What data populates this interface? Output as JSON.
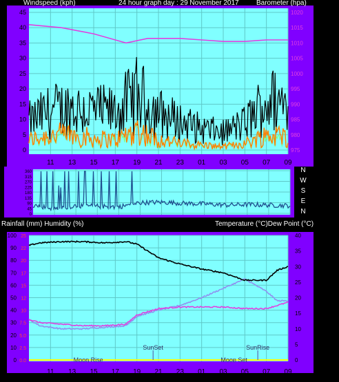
{
  "colors": {
    "background": "#000000",
    "frame": "#8000FF",
    "plot": "#80FFFF",
    "grid": "#5FC8C8",
    "pressure": "#E040E0",
    "gust": "#000000",
    "wind_avg": "#FF8000",
    "wind_light": "#80FF80",
    "direction": "#1F4F8F",
    "temperature": "#000000",
    "dewpoint": "#E040E0",
    "humidity": "#9090F0",
    "rain_axis": "#FF4040",
    "axis_text": "#000000",
    "header_text": "#FFFFFF",
    "rain_line": "#FFFF00"
  },
  "header": {
    "left": "Windspeed (kph)",
    "center": "24 hour graph day : 29 November 2017",
    "right": "Barometer (hpa)"
  },
  "middle_header": {
    "left": "Rainfall (mm)  Humidity (%)",
    "right": "Temperature (°C)Dew Point (°C)"
  },
  "x_ticks": [
    "11",
    "13",
    "15",
    "17",
    "19",
    "21",
    "23",
    "01",
    "03",
    "05",
    "07",
    "09"
  ],
  "chart_data": [
    {
      "type": "line",
      "name": "wind_pressure",
      "left_axis": {
        "ticks": [
          "0",
          "5",
          "10",
          "15",
          "20",
          "25",
          "30",
          "35",
          "40",
          "45"
        ],
        "range": [
          0,
          45
        ]
      },
      "right_axis": {
        "ticks": [
          "975",
          "980",
          "985",
          "990",
          "995",
          "1000",
          "1005",
          "1010",
          "1015",
          "1020"
        ],
        "range": [
          975,
          1020
        ]
      },
      "series": [
        {
          "key": "pressure",
          "x": [
            9,
            12,
            15,
            17,
            18,
            20,
            23,
            1,
            3,
            5,
            7,
            9
          ],
          "values": [
            1016,
            1015,
            1013,
            1011,
            1010,
            1011.5,
            1011.5,
            1011,
            1010.5,
            1010.5,
            1011,
            1011
          ]
        },
        {
          "key": "gust_envelope",
          "x": [
            9,
            11,
            13,
            15,
            17,
            19,
            21,
            23,
            1,
            3,
            5,
            7,
            9
          ],
          "values": [
            16,
            22,
            24,
            22,
            21,
            31,
            21,
            16,
            12,
            10,
            15,
            28,
            26
          ]
        },
        {
          "key": "avg_envelope",
          "x": [
            9,
            11,
            13,
            15,
            17,
            19,
            21,
            23,
            1,
            3,
            5,
            7,
            9
          ],
          "values": [
            6,
            9,
            9,
            7,
            6,
            12,
            6,
            4,
            3,
            2,
            4,
            9,
            8
          ]
        }
      ]
    },
    {
      "type": "line",
      "name": "wind_direction",
      "right_labels": [
        "N",
        "W",
        "S",
        "E",
        "N"
      ],
      "series": [
        {
          "key": "direction",
          "x": [
            9,
            11,
            13,
            15,
            17,
            19,
            21,
            23,
            1,
            3,
            5,
            7,
            9
          ],
          "values": [
            70,
            40,
            65,
            60,
            55,
            90,
            95,
            85,
            80,
            70,
            75,
            70,
            65
          ],
          "unit": "deg"
        }
      ]
    },
    {
      "type": "line",
      "name": "temp_humidity",
      "left_axis": {
        "ticks": [
          "0",
          "10",
          "20",
          "30",
          "40",
          "50",
          "60",
          "70",
          "80",
          "90",
          "100"
        ],
        "range": [
          0,
          100
        ]
      },
      "rain_axis": {
        "ticks": [
          "0.0",
          "2.5",
          "5.0",
          "7.5",
          "10",
          "12",
          "15",
          "17",
          "20",
          "22",
          "25"
        ]
      },
      "right_axis": {
        "ticks": [
          "0",
          "5",
          "10",
          "15",
          "20",
          "25",
          "30",
          "35",
          "40"
        ],
        "range": [
          0,
          40
        ]
      },
      "series": [
        {
          "key": "humidity",
          "x": [
            9,
            10,
            12,
            14,
            16,
            18,
            19,
            21,
            23,
            1,
            3,
            5,
            7,
            8,
            9
          ],
          "values": [
            92,
            94,
            95,
            95,
            94,
            95,
            93,
            82,
            77,
            73,
            70,
            64,
            64,
            72,
            75
          ]
        },
        {
          "key": "temperature",
          "x": [
            9,
            10,
            12,
            14,
            16,
            18,
            19,
            21,
            23,
            1,
            3,
            5,
            7,
            8,
            9
          ],
          "values": [
            13,
            12,
            11.5,
            11,
            11,
            11.5,
            14.5,
            16.5,
            17,
            17,
            17,
            16.5,
            16.5,
            17.5,
            18.5
          ]
        },
        {
          "key": "dewpoint",
          "x": [
            9,
            10,
            12,
            14,
            16,
            18,
            19,
            21,
            23,
            1,
            3,
            5,
            7,
            8,
            9
          ],
          "values": [
            13,
            11,
            10,
            10,
            10.5,
            11,
            14,
            16,
            17.5,
            20,
            23,
            26,
            22,
            19,
            19
          ]
        }
      ]
    }
  ],
  "annotations": [
    {
      "label": "SunSet",
      "x": 20.5
    },
    {
      "label": "SunRise",
      "x": 6.2
    },
    {
      "label": "Moon Rise",
      "x": 14.5
    },
    {
      "label": "Moon Set",
      "x": 4.0
    }
  ]
}
